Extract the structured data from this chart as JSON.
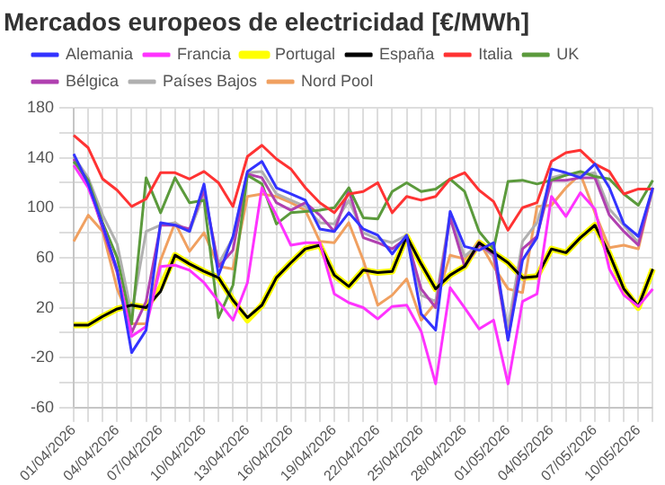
{
  "chart_data": {
    "type": "line",
    "title": "Mercados europeos de electricidad [€/MWh]",
    "categories": [
      "01/04/2026",
      null,
      null,
      "04/04/2026",
      null,
      null,
      "07/04/2026",
      null,
      null,
      "10/04/2026",
      null,
      null,
      "13/04/2026",
      null,
      null,
      "16/04/2026",
      null,
      null,
      "19/04/2026",
      null,
      null,
      "22/04/2026",
      null,
      null,
      "25/04/2026",
      null,
      null,
      "28/04/2026",
      null,
      null,
      "01/05/2026",
      null,
      null,
      "04/05/2026",
      null,
      null,
      "07/05/2026",
      null,
      null,
      "10/05/2026",
      null
    ],
    "series": [
      {
        "name": "Alemania",
        "color": "#3333ff",
        "values": [
          143,
          119,
          86,
          50,
          -16,
          2,
          88,
          86,
          81,
          119,
          46,
          77,
          129,
          137,
          116,
          111,
          106,
          83,
          81,
          96,
          83,
          78,
          63,
          78,
          15,
          2,
          97,
          69,
          66,
          72,
          -6,
          58,
          76,
          131,
          128,
          124,
          135,
          116,
          87,
          77,
          116
        ]
      },
      {
        "name": "Francia",
        "color": "#ff33ff",
        "values": [
          134,
          116,
          86,
          50,
          -3,
          5,
          53,
          54,
          50,
          40,
          25,
          10,
          40,
          116,
          94,
          70,
          72,
          72,
          31,
          24,
          20,
          11,
          21,
          22,
          1,
          -41,
          36,
          20,
          3,
          10,
          -41,
          25,
          31,
          109,
          93,
          112,
          99,
          51,
          30,
          21,
          35
        ]
      },
      {
        "name": "Portugal",
        "color": "#ffff00",
        "values": [
          6,
          6,
          13,
          19,
          22,
          20,
          36,
          62,
          55,
          49,
          44,
          26,
          10,
          22,
          44,
          56,
          67,
          70,
          46,
          37,
          50,
          48,
          49,
          77,
          55,
          35,
          46,
          53,
          72,
          64,
          56,
          44,
          45,
          67,
          64,
          76,
          86,
          63,
          35,
          20,
          51
        ]
      },
      {
        "name": "España",
        "color": "#000000",
        "values": [
          6,
          6,
          13,
          19,
          22,
          20,
          33,
          62,
          55,
          49,
          44,
          26,
          12,
          22,
          44,
          56,
          67,
          70,
          46,
          37,
          50,
          48,
          49,
          77,
          55,
          35,
          46,
          53,
          72,
          64,
          56,
          44,
          45,
          67,
          64,
          76,
          86,
          63,
          35,
          21,
          51
        ]
      },
      {
        "name": "Italia",
        "color": "#ff3333",
        "values": [
          158,
          148,
          123,
          114,
          101,
          107,
          128,
          128,
          123,
          129,
          120,
          101,
          141,
          150,
          139,
          131,
          116,
          104,
          96,
          111,
          113,
          120,
          96,
          109,
          106,
          109,
          123,
          128,
          114,
          105,
          82,
          100,
          104,
          137,
          144,
          146,
          135,
          129,
          111,
          115,
          115
        ]
      },
      {
        "name": "UK",
        "color": "#5b9a3c",
        "values": [
          137,
          122,
          88,
          60,
          7,
          124,
          96,
          124,
          104,
          106,
          12,
          38,
          126,
          119,
          87,
          96,
          97,
          98,
          100,
          116,
          92,
          91,
          113,
          120,
          113,
          115,
          123,
          113,
          81,
          67,
          121,
          122,
          119,
          122,
          126,
          129,
          125,
          123,
          111,
          102,
          122
        ]
      },
      {
        "name": "Bélgica",
        "color": "#b040b0",
        "values": [
          139,
          119,
          83,
          48,
          0,
          25,
          86,
          86,
          83,
          114,
          53,
          66,
          127,
          124,
          104,
          98,
          104,
          94,
          81,
          114,
          76,
          72,
          67,
          76,
          35,
          20,
          92,
          53,
          70,
          63,
          -6,
          67,
          77,
          122,
          122,
          124,
          124,
          94,
          81,
          70,
          116
        ]
      },
      {
        "name": "Países Bajos",
        "color": "#b0b0b0",
        "values": [
          141,
          124,
          94,
          71,
          15,
          81,
          86,
          88,
          81,
          111,
          55,
          76,
          128,
          129,
          111,
          106,
          101,
          88,
          87,
          106,
          80,
          75,
          72,
          78,
          30,
          25,
          95,
          61,
          71,
          61,
          4,
          73,
          88,
          124,
          127,
          126,
          128,
          99,
          86,
          72,
          114
        ]
      },
      {
        "name": "Nord Pool",
        "color": "#f0a060",
        "values": [
          73,
          94,
          81,
          35,
          7,
          7,
          58,
          88,
          65,
          80,
          53,
          51,
          109,
          111,
          109,
          104,
          98,
          73,
          72,
          88,
          58,
          22,
          30,
          43,
          10,
          24,
          62,
          59,
          73,
          53,
          35,
          32,
          101,
          102,
          116,
          127,
          96,
          68,
          70,
          67,
          116
        ]
      }
    ],
    "ylim": [
      -60,
      180
    ],
    "yticks": [
      -60,
      {
        "value": -40,
        "label": null
      },
      -20,
      {
        "value": 0,
        "label": null
      },
      20,
      {
        "value": 40,
        "label": null
      },
      60,
      {
        "value": 80,
        "label": null
      },
      100,
      {
        "value": 120,
        "label": null
      },
      140,
      {
        "value": 160,
        "label": null
      },
      180
    ],
    "grid": true,
    "legend": "top",
    "marker": "none",
    "line_style": "solid"
  }
}
